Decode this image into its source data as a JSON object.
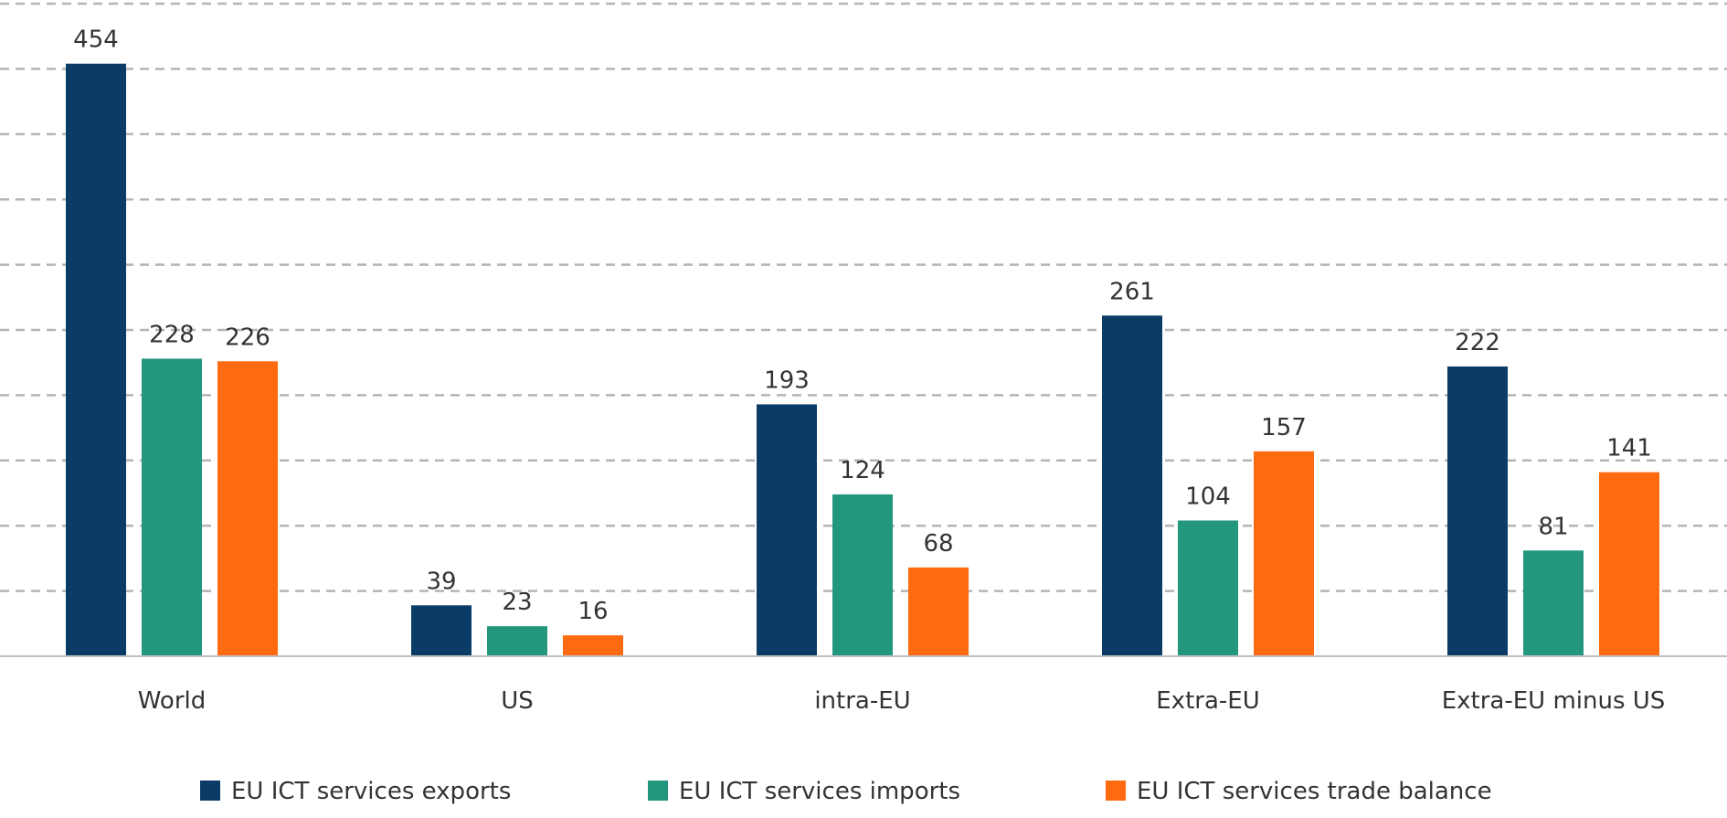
{
  "chart_data": {
    "type": "bar",
    "title": "",
    "xlabel": "",
    "ylabel": "",
    "ylim": [
      0,
      500
    ],
    "grid": {
      "y": true,
      "step": 50,
      "style": "dashed"
    },
    "y_tick_labels_shown": false,
    "categories": [
      "World",
      "US",
      "intra-EU",
      "Extra-EU",
      "Extra-EU minus US"
    ],
    "series": [
      {
        "name": "EU ICT services exports",
        "color": "#0b3c68",
        "values": [
          454,
          39,
          193,
          261,
          222
        ]
      },
      {
        "name": "EU ICT services imports",
        "color": "#22977e",
        "values": [
          228,
          23,
          124,
          104,
          81
        ]
      },
      {
        "name": "EU ICT services trade balance",
        "color": "#fd6a0f",
        "values": [
          226,
          16,
          68,
          157,
          141
        ]
      }
    ],
    "data_labels": true,
    "legend_position": "bottom"
  }
}
